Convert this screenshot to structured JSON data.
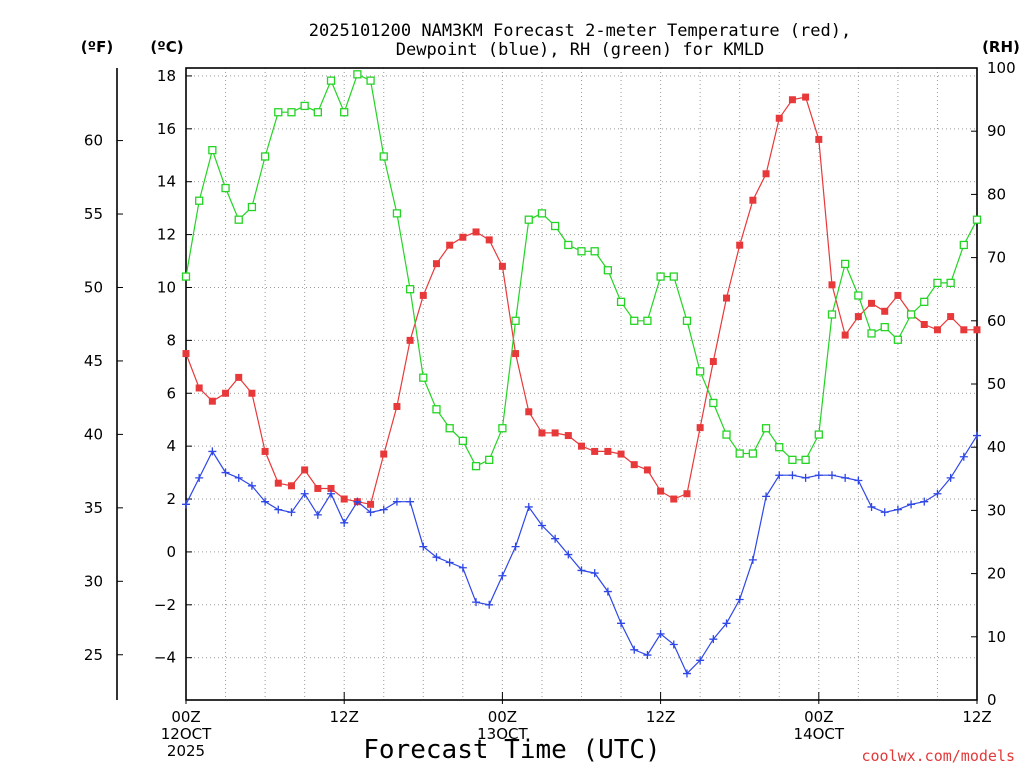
{
  "title_line1": "2025101200 NAM3KM Forecast 2-meter Temperature (red),",
  "title_line2": "Dewpoint (blue), RH (green) for KMLD",
  "credit": "coolwx.com/models",
  "colors": {
    "temperature": "#e8393a",
    "dewpoint": "#2f47e6",
    "rh": "#24d424",
    "credit": "#e2393a",
    "grid": "#9a9a9a"
  },
  "chart_data": {
    "type": "line",
    "station": "KMLD",
    "xlabel": "Forecast Time (UTC)",
    "x_unit": "forecast hour",
    "xlim": [
      0,
      60
    ],
    "x_ticks": [
      {
        "hour": 0,
        "lines": [
          "00Z",
          "12OCT",
          "2025"
        ]
      },
      {
        "hour": 12,
        "lines": [
          "12Z"
        ]
      },
      {
        "hour": 24,
        "lines": [
          "00Z",
          "13OCT"
        ]
      },
      {
        "hour": 36,
        "lines": [
          "12Z"
        ]
      },
      {
        "hour": 48,
        "lines": [
          "00Z",
          "14OCT"
        ]
      },
      {
        "hour": 60,
        "lines": [
          "12Z"
        ]
      }
    ],
    "y_celsius": {
      "label": "(ºC)",
      "lim": [
        -5.6,
        18.3
      ],
      "ticks": [
        -4,
        -2,
        0,
        2,
        4,
        6,
        8,
        10,
        12,
        14,
        16,
        18
      ]
    },
    "y_fahrenheit": {
      "label": "(ºF)",
      "ticks": [
        25,
        30,
        35,
        40,
        45,
        50,
        55,
        60
      ]
    },
    "y_rh": {
      "label": "(RH)",
      "lim": [
        0,
        100
      ],
      "ticks": [
        0,
        10,
        20,
        30,
        40,
        50,
        60,
        70,
        80,
        90,
        100
      ]
    },
    "hours": [
      0,
      1,
      2,
      3,
      4,
      5,
      6,
      7,
      8,
      9,
      10,
      11,
      12,
      13,
      14,
      15,
      16,
      17,
      18,
      19,
      20,
      21,
      22,
      23,
      24,
      25,
      26,
      27,
      28,
      29,
      30,
      31,
      32,
      33,
      34,
      35,
      36,
      37,
      38,
      39,
      40,
      41,
      42,
      43,
      44,
      45,
      46,
      47,
      48,
      49,
      50,
      51,
      52,
      53,
      54,
      55,
      56,
      57,
      58,
      59,
      60
    ],
    "series": [
      {
        "name": "Temperature",
        "unit": "C",
        "color_key": "temperature",
        "marker": "filled-square",
        "values": [
          7.5,
          6.2,
          5.7,
          6.0,
          6.6,
          6.0,
          3.8,
          2.6,
          2.5,
          3.1,
          2.4,
          2.4,
          2.0,
          1.9,
          1.8,
          3.7,
          5.5,
          8.0,
          9.7,
          10.9,
          11.6,
          11.9,
          12.1,
          11.8,
          10.8,
          7.5,
          5.3,
          4.5,
          4.5,
          4.4,
          4.0,
          3.8,
          3.8,
          3.7,
          3.3,
          3.1,
          2.3,
          2.0,
          2.2,
          4.7,
          7.2,
          9.6,
          11.6,
          13.3,
          14.3,
          16.4,
          17.1,
          17.2,
          15.6,
          10.1,
          8.2,
          8.9,
          9.4,
          9.1,
          9.7,
          9.0,
          8.6,
          8.4,
          8.9,
          8.4,
          8.4
        ]
      },
      {
        "name": "Dewpoint",
        "unit": "C",
        "color_key": "dewpoint",
        "marker": "plus",
        "values": [
          1.8,
          2.8,
          3.8,
          3.0,
          2.8,
          2.5,
          1.9,
          1.6,
          1.5,
          2.2,
          1.4,
          2.2,
          1.1,
          1.9,
          1.5,
          1.6,
          1.9,
          1.9,
          0.2,
          -0.2,
          -0.4,
          -0.6,
          -1.9,
          -2.0,
          -0.9,
          0.2,
          1.7,
          1.0,
          0.5,
          -0.1,
          -0.7,
          -0.8,
          -1.5,
          -2.7,
          -3.7,
          -3.9,
          -3.1,
          -3.5,
          -4.6,
          -4.1,
          -3.3,
          -2.7,
          -1.8,
          -0.3,
          2.1,
          2.9,
          2.9,
          2.8,
          2.9,
          2.9,
          2.8,
          2.7,
          1.7,
          1.5,
          1.6,
          1.8,
          1.9,
          2.2,
          2.8,
          3.6,
          4.4
        ]
      },
      {
        "name": "RH",
        "unit": "%",
        "color_key": "rh",
        "marker": "open-square",
        "values": [
          67,
          79,
          87,
          81,
          76,
          78,
          86,
          93,
          93,
          94,
          93,
          98,
          93,
          99,
          98,
          86,
          77,
          65,
          51,
          46,
          43,
          41,
          37,
          38,
          43,
          60,
          76,
          77,
          75,
          72,
          71,
          71,
          68,
          63,
          60,
          60,
          67,
          67,
          60,
          52,
          47,
          42,
          39,
          39,
          43,
          40,
          38,
          38,
          42,
          61,
          69,
          64,
          58,
          59,
          57,
          61,
          63,
          66,
          66,
          72,
          76
        ]
      }
    ]
  }
}
